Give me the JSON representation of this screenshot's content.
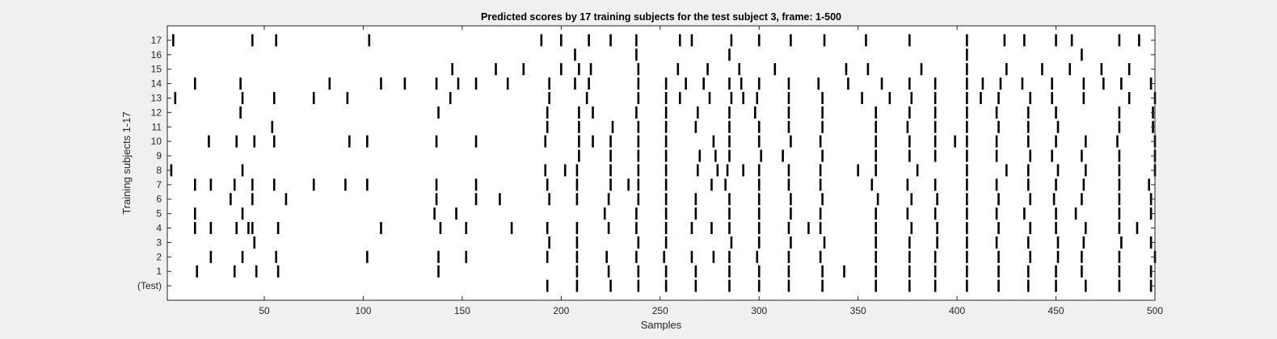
{
  "window": {
    "background": "#f0f0f0"
  },
  "chart_data": {
    "type": "raster",
    "title": "Predicted scores by 17 training subjects for the test subject 3, frame: 1-500",
    "xlabel": "Samples",
    "ylabel": "Training subjects 1-17",
    "xlim": [
      1,
      500
    ],
    "xticks": [
      50,
      100,
      150,
      200,
      250,
      300,
      350,
      400,
      450,
      500
    ],
    "yticklabels": [
      "(Test)",
      "1",
      "2",
      "3",
      "4",
      "5",
      "6",
      "7",
      "8",
      "9",
      "10",
      "11",
      "12",
      "13",
      "14",
      "15",
      "16",
      "17"
    ],
    "grid": false,
    "legend": "none",
    "colors": {
      "plot_background": "#ffffff",
      "mark": "#000000",
      "axes": "#262626"
    },
    "rows": [
      {
        "label": "(Test)",
        "x": [
          193,
          208,
          225,
          239,
          253,
          268,
          285,
          300,
          315,
          332,
          359,
          376,
          389,
          405,
          421,
          436,
          450,
          465,
          482,
          498
        ]
      },
      {
        "label": "1",
        "x": [
          16,
          35,
          46,
          57,
          138,
          208,
          224,
          239,
          253,
          268,
          285,
          300,
          315,
          332,
          343,
          359,
          376,
          389,
          405,
          421,
          436,
          450,
          463,
          482,
          498
        ]
      },
      {
        "label": "2",
        "x": [
          23,
          39,
          56,
          102,
          138,
          152,
          193,
          208,
          223,
          238,
          252,
          266,
          277,
          285,
          299,
          315,
          331,
          359,
          376,
          389,
          405,
          421,
          437,
          451,
          463,
          482,
          500
        ]
      },
      {
        "label": "3",
        "x": [
          45,
          194,
          208,
          239,
          253,
          286,
          300,
          316,
          333,
          359,
          376,
          390,
          405,
          420,
          436,
          451,
          464,
          483,
          498
        ]
      },
      {
        "label": "4",
        "x": [
          15,
          23,
          36,
          42,
          44,
          57,
          109,
          139,
          152,
          175,
          193,
          208,
          224,
          238,
          253,
          266,
          276,
          285,
          300,
          315,
          325,
          331,
          359,
          377,
          390,
          405,
          421,
          437,
          450,
          465,
          482,
          491
        ]
      },
      {
        "label": "5",
        "x": [
          15,
          39,
          136,
          147,
          222,
          238,
          253,
          268,
          285,
          300,
          316,
          331,
          359,
          375,
          389,
          405,
          420,
          434,
          450,
          460,
          482,
          498
        ]
      },
      {
        "label": "6",
        "x": [
          33,
          44,
          61,
          137,
          157,
          169,
          194,
          208,
          224,
          239,
          253,
          268,
          285,
          300,
          316,
          332,
          360,
          377,
          390,
          405,
          421,
          437,
          449,
          463,
          482,
          498
        ]
      },
      {
        "label": "7",
        "x": [
          15,
          23,
          35,
          44,
          55,
          75,
          91,
          102,
          137,
          157,
          193,
          208,
          225,
          234,
          239,
          253,
          276,
          283,
          300,
          315,
          331,
          357,
          375,
          389,
          405,
          420,
          436,
          450,
          464,
          482,
          497
        ]
      },
      {
        "label": "8",
        "x": [
          3,
          39,
          192,
          202,
          208,
          225,
          239,
          253,
          269,
          279,
          284,
          292,
          300,
          315,
          331,
          350,
          359,
          380,
          405,
          425,
          436,
          451,
          465,
          482,
          500
        ]
      },
      {
        "label": "9",
        "x": [
          209,
          225,
          239,
          253,
          270,
          278,
          285,
          301,
          312,
          332,
          359,
          376,
          389,
          405,
          420,
          437,
          448,
          463,
          482,
          500
        ]
      },
      {
        "label": "10",
        "x": [
          22,
          36,
          45,
          55,
          93,
          102,
          137,
          157,
          192,
          209,
          216,
          225,
          239,
          253,
          277,
          285,
          300,
          316,
          331,
          359,
          376,
          389,
          399,
          405,
          420,
          436,
          450,
          465,
          481,
          500
        ]
      },
      {
        "label": "11",
        "x": [
          54,
          193,
          209,
          226,
          239,
          253,
          268,
          285,
          300,
          315,
          332,
          359,
          375,
          389,
          405,
          421,
          436,
          451,
          482,
          499
        ]
      },
      {
        "label": "12",
        "x": [
          38,
          138,
          193,
          209,
          216,
          238,
          253,
          269,
          285,
          298,
          315,
          332,
          359,
          376,
          389,
          405,
          420,
          436,
          450,
          482,
          499
        ]
      },
      {
        "label": "13",
        "x": [
          5,
          39,
          55,
          75,
          92,
          144,
          194,
          213,
          239,
          253,
          260,
          275,
          286,
          292,
          299,
          315,
          332,
          352,
          366,
          377,
          389,
          405,
          412,
          421,
          437,
          448,
          464,
          487,
          500
        ]
      },
      {
        "label": "14",
        "x": [
          15,
          38,
          83,
          109,
          121,
          137,
          148,
          157,
          173,
          194,
          207,
          214,
          239,
          253,
          263,
          272,
          285,
          291,
          300,
          315,
          330,
          345,
          362,
          376,
          389,
          405,
          413,
          422,
          433,
          448,
          464,
          474,
          483,
          498
        ]
      },
      {
        "label": "15",
        "x": [
          145,
          167,
          181,
          200,
          209,
          215,
          239,
          259,
          274,
          290,
          308,
          344,
          355,
          382,
          405,
          425,
          443,
          457,
          473,
          487
        ]
      },
      {
        "label": "16",
        "x": [
          207,
          238,
          285,
          405,
          463
        ]
      },
      {
        "label": "17",
        "x": [
          4,
          44,
          56,
          103,
          190,
          200,
          214,
          225,
          238,
          260,
          266,
          286,
          300,
          316,
          333,
          354,
          376,
          405,
          424,
          434,
          450,
          458,
          482,
          492
        ]
      }
    ]
  }
}
